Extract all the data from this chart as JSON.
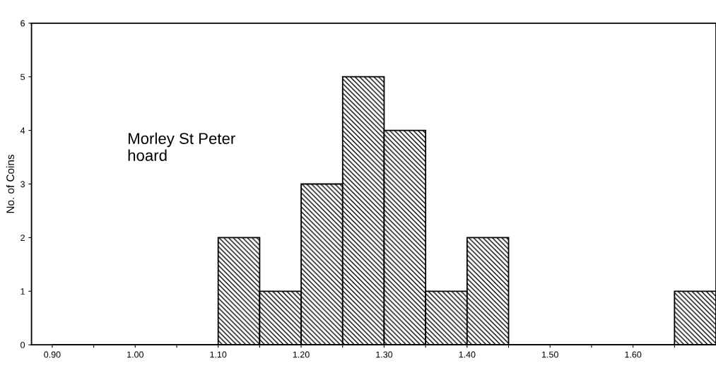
{
  "chart_data": {
    "type": "histogram",
    "ylabel": "No. of Coins",
    "annotations": [
      "Morley St Peter\nhoard"
    ],
    "bins": [
      0.9,
      0.95,
      1.0,
      1.05,
      1.1,
      1.15,
      1.2,
      1.25,
      1.3,
      1.35,
      1.4,
      1.45,
      1.5,
      1.55,
      1.6,
      1.65,
      1.7
    ],
    "values": [
      0,
      0,
      0,
      0,
      2,
      1,
      3,
      5,
      4,
      1,
      2,
      0,
      0,
      0,
      0,
      1
    ],
    "color": "#000000",
    "xlim": [
      0.875,
      1.7
    ],
    "xticks": [
      {
        "value": 0.9,
        "label": "0.90"
      },
      {
        "value": 0.95,
        "label": null
      },
      {
        "value": 1.0,
        "label": "1.00"
      },
      {
        "value": 1.05,
        "label": null
      },
      {
        "value": 1.1,
        "label": "1.10"
      },
      {
        "value": 1.15,
        "label": null
      },
      {
        "value": 1.2,
        "label": "1.20"
      },
      {
        "value": 1.25,
        "label": null
      },
      {
        "value": 1.3,
        "label": "1.30"
      },
      {
        "value": 1.35,
        "label": null
      },
      {
        "value": 1.4,
        "label": "1.40"
      },
      {
        "value": 1.45,
        "label": null
      },
      {
        "value": 1.5,
        "label": "1.50"
      },
      {
        "value": 1.55,
        "label": null
      },
      {
        "value": 1.6,
        "label": "1.60"
      },
      {
        "value": 1.65,
        "label": null
      }
    ],
    "ylim": [
      0,
      6
    ],
    "yticks": [
      0,
      1,
      2,
      3,
      4,
      5,
      6
    ],
    "grid": false,
    "legend": false
  }
}
